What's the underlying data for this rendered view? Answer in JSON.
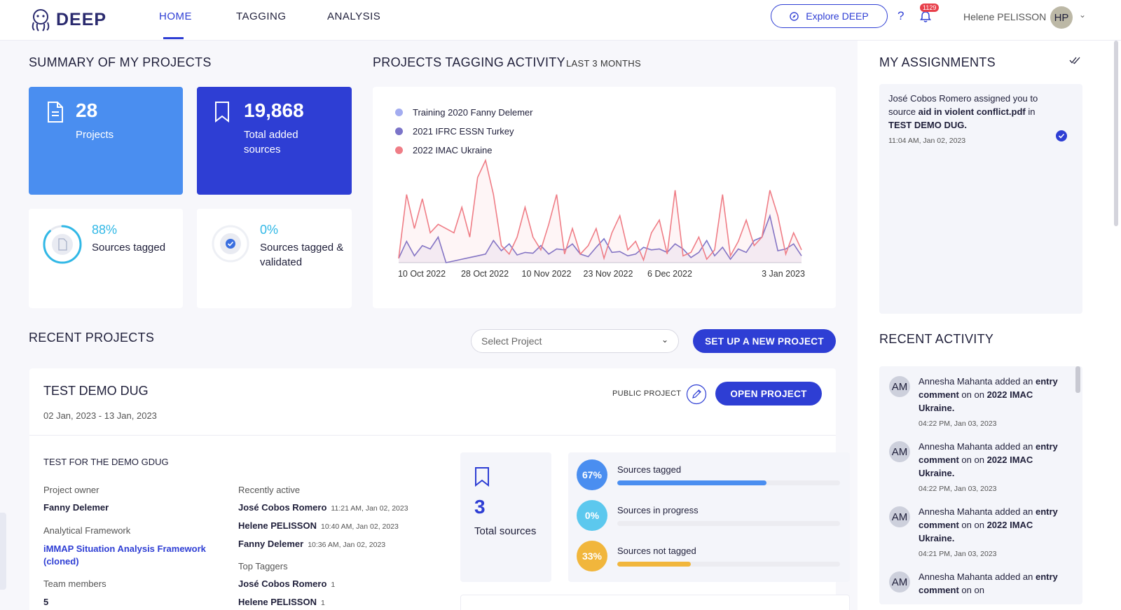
{
  "header": {
    "logo_text": "DEEP",
    "nav": [
      {
        "label": "HOME"
      },
      {
        "label": "TAGGING"
      },
      {
        "label": "ANALYSIS"
      }
    ],
    "explore_label": "Explore DEEP",
    "help": "?",
    "notification_count": "1129",
    "user_name": "Helene PELISSON",
    "user_initials": "HP"
  },
  "summary": {
    "title": "SUMMARY OF MY PROJECTS",
    "projects_count": "28",
    "projects_label": "Projects",
    "sources_count": "19,868",
    "sources_label": "Total added sources",
    "tagged_pct": "88%",
    "tagged_label": "Sources tagged",
    "tagged_fraction": 0.88,
    "validated_pct": "0%",
    "validated_label": "Sources tagged & validated"
  },
  "activity_chart": {
    "title": "PROJECTS TAGGING ACTIVITY",
    "period": "LAST 3 MONTHS"
  },
  "chart_data": {
    "type": "line",
    "series": [
      {
        "name": "Training 2020 Fanny Delemer",
        "color": "#a3acf0",
        "values": []
      },
      {
        "name": "2021 IFRC ESSN Turkey",
        "color": "#7b74c9",
        "values": [
          0.5,
          2.5,
          0.8,
          2.0,
          1.6,
          3.0,
          0.0,
          0.2,
          0.4,
          0.6,
          0.8,
          1.0,
          2.6,
          1.4,
          2.2,
          0.9,
          1.2,
          1.1,
          2.0,
          1.0,
          1.6,
          1.5,
          2.2,
          1.0,
          0.7,
          1.8,
          2.8,
          1.2,
          1.3,
          0.8,
          1.0,
          1.8,
          1.5,
          1.6,
          1.2,
          2.2,
          1.6,
          0.6,
          1.2,
          2.6,
          0.8,
          1.8,
          0.4,
          1.6,
          1.2,
          2.6,
          3.0,
          5.5,
          1.4,
          1.6,
          2.2,
          0.8
        ]
      },
      {
        "name": "2022 IMAC Ukraine",
        "color": "#ef7d86",
        "values": [
          0.5,
          8.0,
          4.0,
          7.5,
          3.5,
          4.5,
          4.0,
          3.5,
          6.5,
          3.0,
          10.0,
          12.0,
          8.0,
          2.0,
          1.0,
          3.0,
          6.5,
          3.0,
          1.5,
          4.5,
          8.0,
          1.0,
          4.0,
          1.0,
          2.0,
          4.0,
          0.5,
          3.5,
          5.5,
          1.5,
          2.5,
          0.3,
          3.5,
          5.0,
          1.0,
          8.5,
          0.8,
          1.2,
          3.0,
          0.4,
          1.5,
          8.0,
          0.8,
          2.5,
          5.0,
          2.0,
          3.0,
          8.5,
          5.5,
          1.0,
          3.5,
          1.5
        ]
      }
    ],
    "x_ticks": [
      "10 Oct 2022",
      "28 Oct 2022",
      "10 Nov 2022",
      "23 Nov 2022",
      "6 Dec 2022",
      "3 Jan 2023"
    ],
    "grid": false,
    "legend_position": "top-left"
  },
  "assignments": {
    "title": "MY ASSIGNMENTS",
    "item": {
      "actor": "José Cobos Romero",
      "text1": " assigned you to source ",
      "source": "aid in violent conflict.pdf",
      "text2": " in ",
      "project": "TEST DEMO DUG.",
      "time": "11:04 AM, Jan 02, 2023"
    }
  },
  "recent_activity": {
    "title": "RECENT ACTIVITY",
    "items": [
      {
        "initials": "AM",
        "actor": "Annesha Mahanta",
        "action": " added an ",
        "object": "entry comment",
        "on": " on on ",
        "project": "2022 IMAC Ukraine.",
        "time": "04:22 PM, Jan 03, 2023"
      },
      {
        "initials": "AM",
        "actor": "Annesha Mahanta",
        "action": " added an ",
        "object": "entry comment",
        "on": " on on ",
        "project": "2022 IMAC Ukraine.",
        "time": "04:22 PM, Jan 03, 2023"
      },
      {
        "initials": "AM",
        "actor": "Annesha Mahanta",
        "action": " added an ",
        "object": "entry comment",
        "on": " on on ",
        "project": "2022 IMAC Ukraine.",
        "time": "04:21 PM, Jan 03, 2023"
      },
      {
        "initials": "AM",
        "actor": "Annesha Mahanta",
        "action": " added an ",
        "object": "entry comment",
        "on": " on on ",
        "project": "",
        "time": ""
      }
    ]
  },
  "recent_projects": {
    "title": "RECENT PROJECTS",
    "select_placeholder": "Select Project",
    "new_project_label": "SET UP A NEW PROJECT"
  },
  "project": {
    "name": "TEST DEMO DUG",
    "dates": "02 Jan, 2023 - 13 Jan, 2023",
    "visibility": "PUBLIC PROJECT",
    "open_label": "OPEN PROJECT",
    "description": "TEST FOR THE DEMO GDUG",
    "owner_label": "Project owner",
    "owner": "Fanny Delemer",
    "framework_label": "Analytical Framework",
    "framework": "iMMAP Situation Analysis Framework (cloned)",
    "team_label": "Team members",
    "team_count": "5",
    "recent_label": "Recently active",
    "recent": [
      {
        "name": "José Cobos Romero",
        "time": "11:21 AM, Jan 02, 2023"
      },
      {
        "name": "Helene PELISSON",
        "time": "10:40 AM, Jan 02, 2023"
      },
      {
        "name": "Fanny Delemer",
        "time": "10:36 AM, Jan 02, 2023"
      }
    ],
    "taggers_label": "Top Taggers",
    "taggers": [
      {
        "name": "José Cobos Romero",
        "count": "1"
      },
      {
        "name": "Helene PELISSON",
        "count": "1"
      }
    ],
    "total_sources": "3",
    "total_sources_label": "Total sources",
    "bars": [
      {
        "pct": "67%",
        "label": "Sources tagged",
        "fraction": 0.67,
        "color": "#4a8ef0"
      },
      {
        "pct": "0%",
        "label": "Sources in progress",
        "fraction": 0.0,
        "color": "#5cc8ee"
      },
      {
        "pct": "33%",
        "label": "Sources not tagged",
        "fraction": 0.33,
        "color": "#f1b63c"
      }
    ]
  }
}
